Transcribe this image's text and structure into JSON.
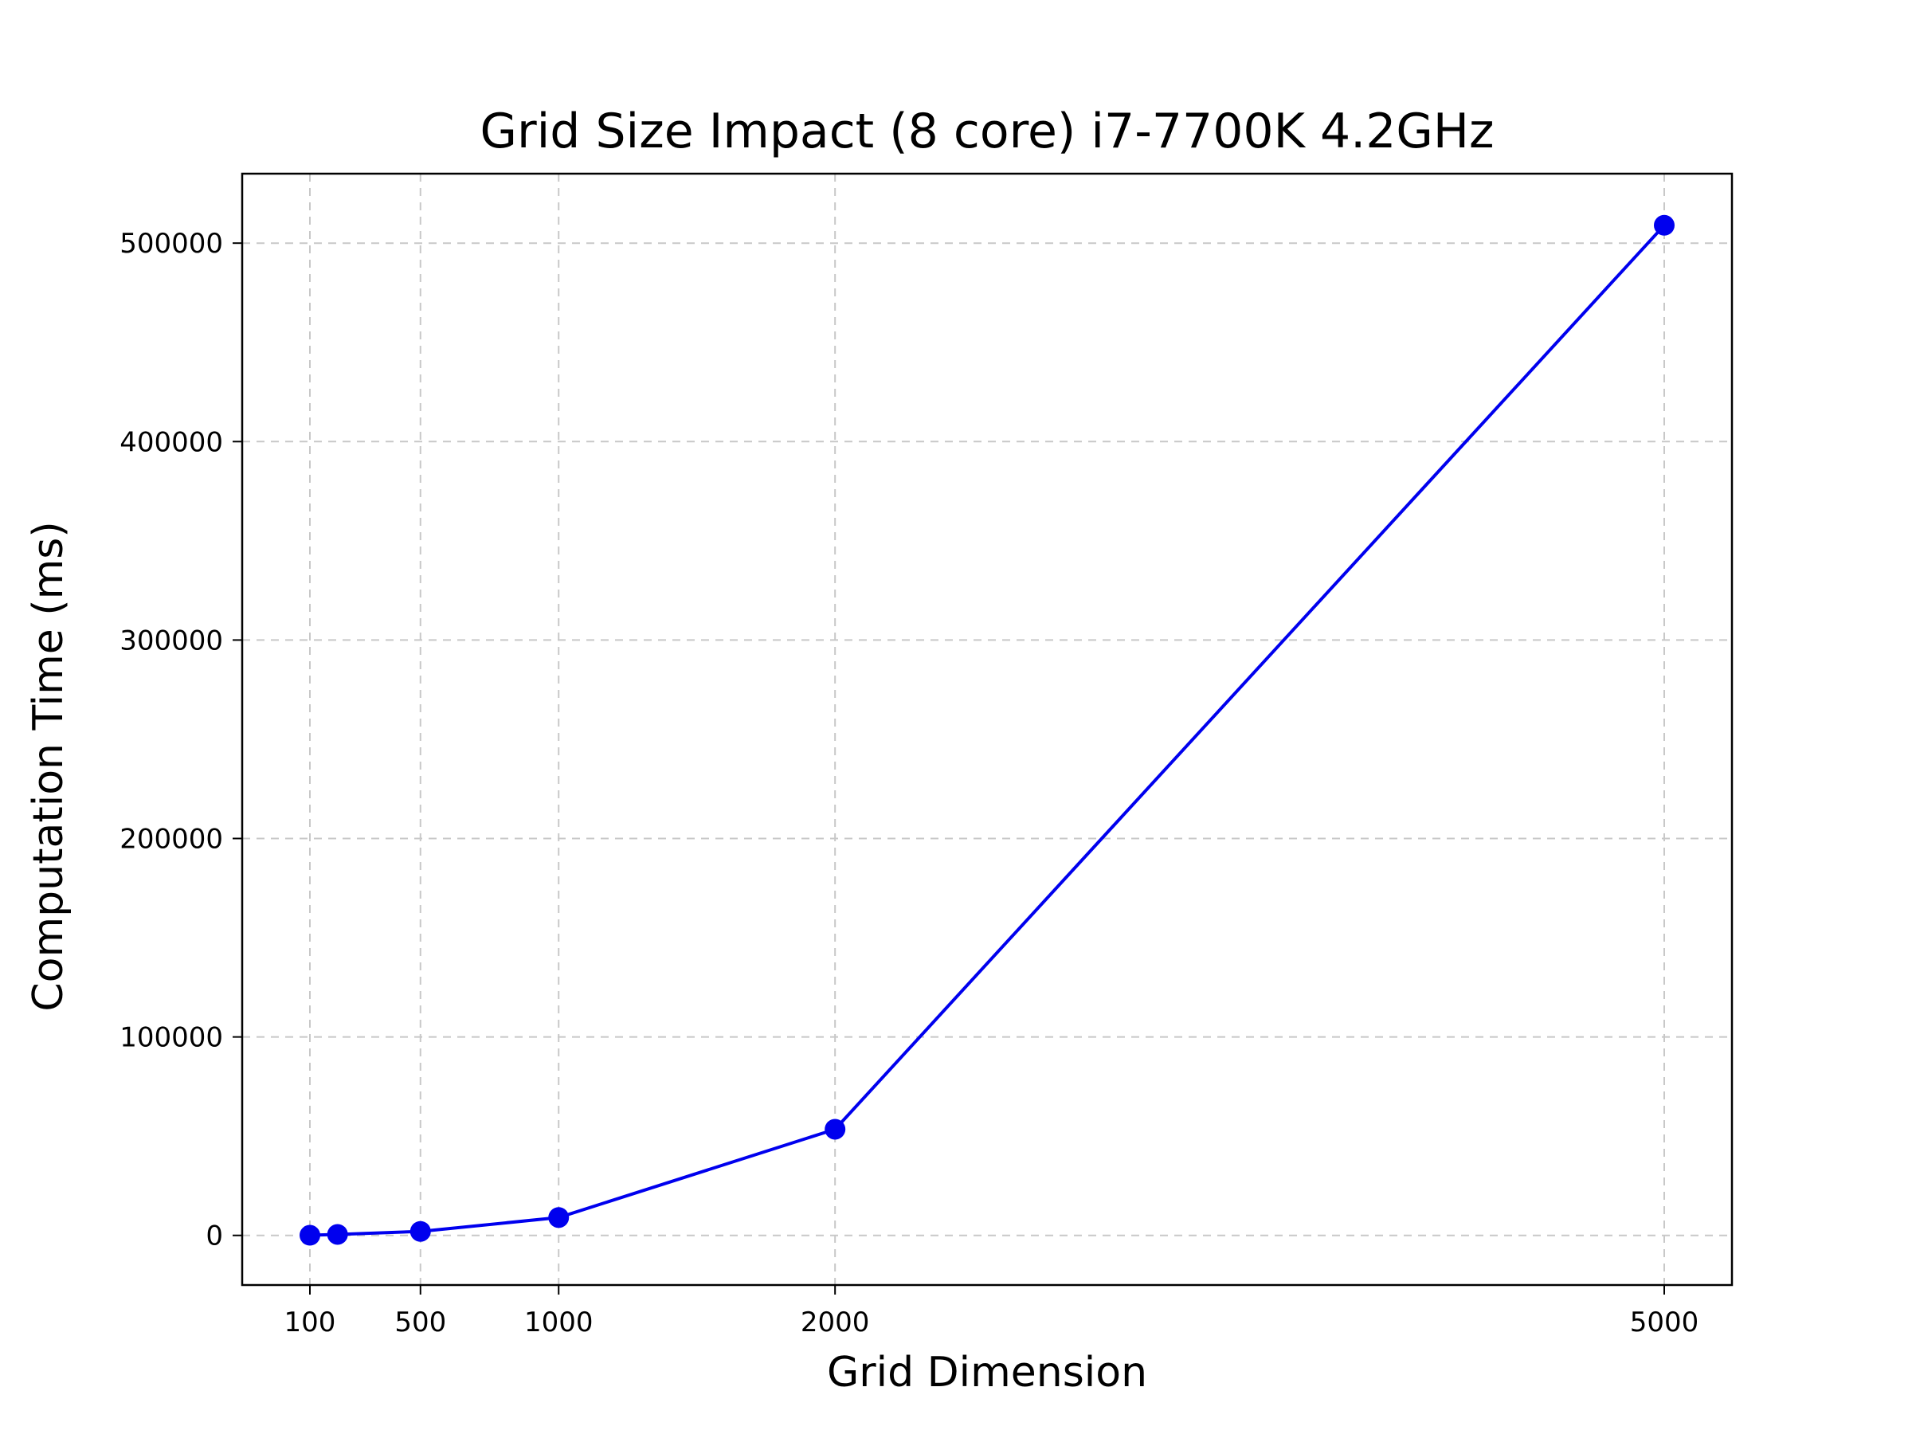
{
  "chart_data": {
    "type": "line",
    "title": "Grid Size Impact (8 core) i7-7700K 4.2GHz",
    "xlabel": "Grid Dimension",
    "ylabel": "Computation Time (ms)",
    "x_ticks": [
      100,
      500,
      1000,
      2000,
      5000
    ],
    "y_ticks": [
      0,
      100000,
      200000,
      300000,
      400000,
      500000
    ],
    "xlim": [
      -145,
      5245
    ],
    "ylim": [
      -25000,
      535000
    ],
    "grid": true,
    "grid_style": "dashed",
    "series": [
      {
        "color": "#0000ee",
        "marker": "circle",
        "x": [
          100,
          200,
          500,
          1000,
          2000,
          5000
        ],
        "y": [
          80,
          500,
          2000,
          9000,
          53500,
          509000
        ]
      }
    ]
  }
}
